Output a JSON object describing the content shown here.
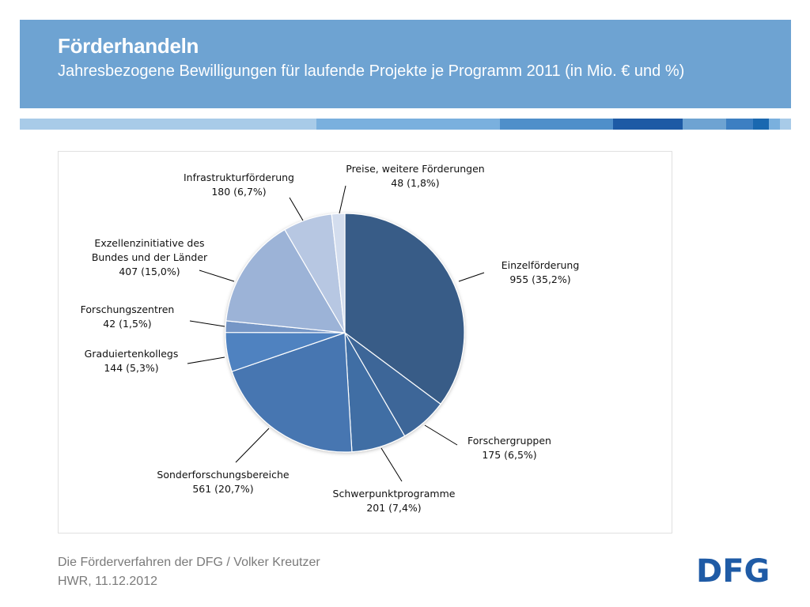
{
  "header": {
    "title": "Förderhandeln",
    "subtitle": "Jahresbezogene Bewilligungen für laufende Projekte je Programm 2011 (in Mio. € und %)"
  },
  "colors": {
    "header_bg": "#6ea3d2",
    "stripe": [
      "#a8cbe8",
      "#7ab0de",
      "#4f8fca",
      "#1d5aa5",
      "#6ea3d2",
      "#3d7fc2",
      "#1a68b0"
    ]
  },
  "chart_data": {
    "type": "pie",
    "unit": "Mio. €",
    "slices": [
      {
        "name": "Einzelförderung",
        "value": 955,
        "percent": "35,2%",
        "label_lines": [
          "Einzelförderung",
          "955 (35,2%)"
        ],
        "color": "#375b87"
      },
      {
        "name": "Forschergruppen",
        "value": 175,
        "percent": "6,5%",
        "label_lines": [
          "Forschergruppen",
          "175 (6,5%)"
        ],
        "color": "#3d6698"
      },
      {
        "name": "Schwerpunktprogramme",
        "value": 201,
        "percent": "7,4%",
        "label_lines": [
          "Schwerpunktprogramme",
          "201 (7,4%)"
        ],
        "color": "#416ea4"
      },
      {
        "name": "Sonderforschungsbereiche",
        "value": 561,
        "percent": "20,7%",
        "label_lines": [
          "Sonderforschungsbereiche",
          "561 (20,7%)"
        ],
        "color": "#4676b1"
      },
      {
        "name": "Graduiertenkollegs",
        "value": 144,
        "percent": "5,3%",
        "label_lines": [
          "Graduiertenkollegs",
          "144 (5,3%)"
        ],
        "color": "#4f82c0"
      },
      {
        "name": "Forschungszentren",
        "value": 42,
        "percent": "1,5%",
        "label_lines": [
          "Forschungszentren",
          "42 (1,5%)"
        ],
        "color": "#7496c6"
      },
      {
        "name": "Exzellenzinitiative des Bundes und der Länder",
        "value": 407,
        "percent": "15,0%",
        "label_lines": [
          "Exzellenzinitiative des",
          "Bundes und der Länder",
          "407 (15,0%)"
        ],
        "color": "#9cb3d7"
      },
      {
        "name": "Infrastrukturförderung",
        "value": 180,
        "percent": "6,7%",
        "label_lines": [
          "Infrastrukturförderung",
          "180 (6,7%)"
        ],
        "color": "#b7c7e2"
      },
      {
        "name": "Preise, weitere Förderungen",
        "value": 48,
        "percent": "1,8%",
        "label_lines": [
          "Preise, weitere Förderungen",
          "48 (1,8%)"
        ],
        "color": "#d3ddee"
      }
    ]
  },
  "footer": {
    "line1": "Die Förderverfahren der DFG / Volker Kreutzer",
    "line2": "HWR, 11.12.2012"
  },
  "logo": {
    "text": "DFG",
    "color": "#1f5ba6"
  }
}
